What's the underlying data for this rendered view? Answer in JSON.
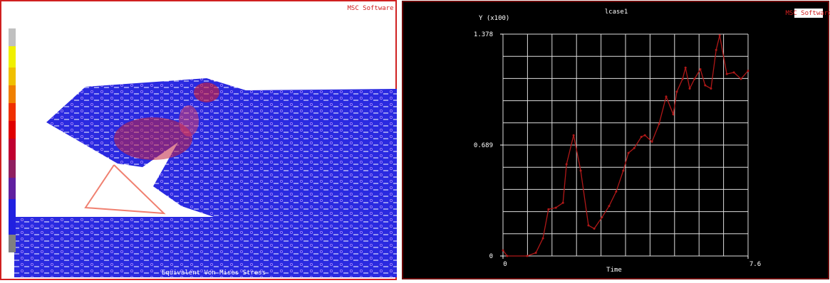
{
  "contour_panel": {
    "caption": "Equivalent Von Mises Stress",
    "logo": "MSC Software"
  },
  "chart_data": {
    "type": "line",
    "title": "lcase1",
    "xlabel": "Time",
    "ylabel": "Y (x100)",
    "logo": "MSC Software",
    "x": [
      0,
      0.13,
      0.75,
      1.02,
      1.24,
      1.41,
      1.64,
      1.86,
      1.97,
      2.19,
      2.41,
      2.65,
      2.83,
      3.07,
      3.29,
      3.51,
      3.73,
      3.89,
      4.07,
      4.29,
      4.4,
      4.62,
      4.84,
      5.06,
      5.28,
      5.39,
      5.57,
      5.66,
      5.79,
      5.94,
      6.12,
      6.27,
      6.45,
      6.61,
      6.72,
      6.94,
      7.16,
      7.38,
      7.6
    ],
    "series": [
      {
        "name": "lcase1",
        "color": "#b01818",
        "values": [
          0.035,
          0,
          0,
          0.02,
          0.11,
          0.29,
          0.3,
          0.33,
          0.57,
          0.75,
          0.53,
          0.19,
          0.17,
          0.24,
          0.31,
          0.4,
          0.53,
          0.64,
          0.67,
          0.74,
          0.75,
          0.71,
          0.82,
          0.99,
          0.88,
          1.02,
          1.1,
          1.17,
          1.04,
          1.1,
          1.16,
          1.06,
          1.04,
          1.28,
          1.37,
          1.13,
          1.14,
          1.1,
          1.15
        ]
      }
    ],
    "xlim": [
      0,
      7.6
    ],
    "xticks": [
      0,
      7.6
    ],
    "ylim": [
      0,
      1.378
    ],
    "yticks": [
      0,
      0.689,
      1.378
    ],
    "grid": true
  }
}
